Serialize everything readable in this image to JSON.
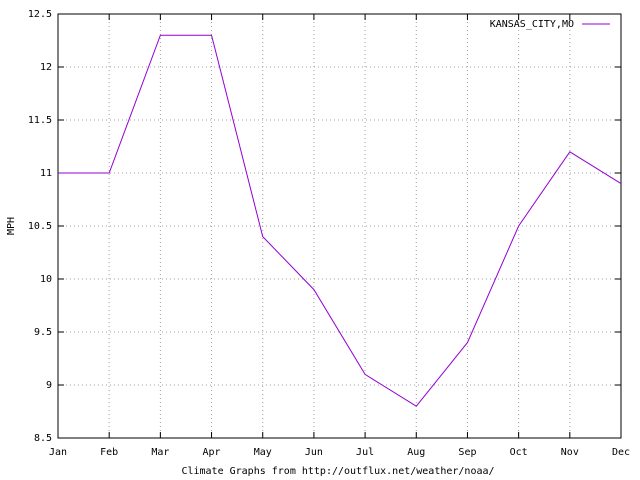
{
  "chart_data": {
    "type": "line",
    "x_label": "Climate Graphs from http://outflux.net/weather/noaa/",
    "y_label": "MPH",
    "categories": [
      "Jan",
      "Feb",
      "Mar",
      "Apr",
      "May",
      "Jun",
      "Jul",
      "Aug",
      "Sep",
      "Oct",
      "Nov",
      "Dec"
    ],
    "series": [
      {
        "name": "KANSAS_CITY,MO",
        "color": "#9400d3",
        "values": [
          11,
          11,
          12.3,
          12.3,
          10.4,
          9.9,
          9.1,
          8.8,
          9.4,
          10.5,
          11.2,
          10.9
        ]
      }
    ],
    "ylim": [
      8.5,
      12.5
    ],
    "yticks": [
      8.5,
      9,
      9.5,
      10,
      10.5,
      11,
      11.5,
      12,
      12.5
    ],
    "grid": true,
    "legend": "top-right"
  }
}
